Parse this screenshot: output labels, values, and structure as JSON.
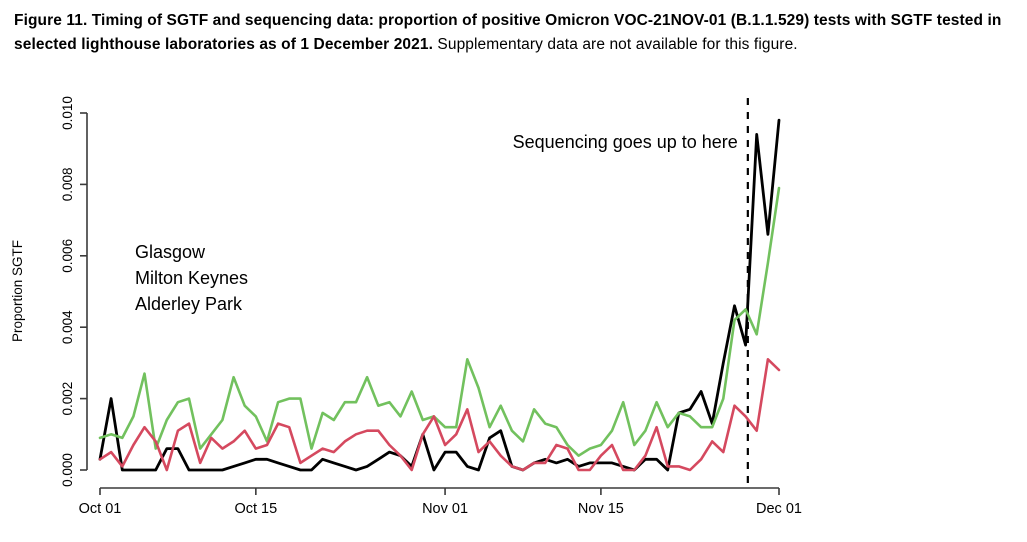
{
  "caption": {
    "bold_text": "Figure 11. Timing of SGTF and sequencing data: proportion of positive Omicron VOC-21NOV-01 (B.1.1.529) tests with SGTF tested in selected lighthouse laboratories as of 1 December 2021.",
    "regular_text": " Supplementary data are not available for this figure."
  },
  "chart_data": {
    "type": "line",
    "title": "",
    "xlabel": "",
    "ylabel": "Proportion SGTF",
    "ylim": [
      0,
      0.01
    ],
    "yticks": [
      0.0,
      0.002,
      0.004,
      0.006,
      0.008,
      0.01
    ],
    "ytick_labels": [
      "0.000",
      "0.002",
      "0.004",
      "0.006",
      "0.008",
      "0.010"
    ],
    "x_unit": "days since Oct 01 2021, daily points Oct 01 - Dec 01",
    "x_range_days": [
      0,
      61
    ],
    "xticks": [
      {
        "day": 0,
        "label": "Oct 01"
      },
      {
        "day": 14,
        "label": "Oct 15"
      },
      {
        "day": 31,
        "label": "Nov 01"
      },
      {
        "day": 45,
        "label": "Nov 15"
      },
      {
        "day": 61,
        "label": "Dec 01"
      }
    ],
    "grid": false,
    "legend_position": "upper-left-inside",
    "annotation": {
      "text": "Sequencing goes up to here",
      "line_at_day": 58.2,
      "line_style": "dashed",
      "line_color": "#000000"
    },
    "series": [
      {
        "name": "Glasgow",
        "color": "#000000",
        "values": [
          0.0003,
          0.002,
          0.0,
          0.0,
          0.0,
          0.0,
          0.0006,
          0.0006,
          0.0,
          0.0,
          0.0,
          0.0,
          0.0001,
          0.0002,
          0.0003,
          0.0003,
          0.0002,
          0.0001,
          0.0,
          0.0,
          0.0003,
          0.0002,
          0.0001,
          0.0,
          0.0001,
          0.0003,
          0.0005,
          0.0004,
          0.0001,
          0.001,
          0.0,
          0.0005,
          0.0005,
          0.0001,
          0.0,
          0.0009,
          0.0011,
          0.0001,
          0.0,
          0.0002,
          0.0003,
          0.0002,
          0.0003,
          0.0001,
          0.0002,
          0.0002,
          0.0002,
          0.0001,
          0.0,
          0.0003,
          0.0003,
          0.0,
          0.0016,
          0.0017,
          0.0022,
          0.0013,
          0.003,
          0.0046,
          0.0035,
          0.0094,
          0.0066,
          0.0098
        ]
      },
      {
        "name": "Milton Keynes",
        "color": "#72c15e",
        "values": [
          0.0009,
          0.001,
          0.0009,
          0.0015,
          0.0027,
          0.0006,
          0.0014,
          0.0019,
          0.002,
          0.0006,
          0.001,
          0.0014,
          0.0026,
          0.0018,
          0.0015,
          0.0008,
          0.0019,
          0.002,
          0.002,
          0.0006,
          0.0016,
          0.0014,
          0.0019,
          0.0019,
          0.0026,
          0.0018,
          0.0019,
          0.0015,
          0.0022,
          0.0014,
          0.0015,
          0.0012,
          0.0012,
          0.0031,
          0.0023,
          0.0012,
          0.0018,
          0.0011,
          0.0008,
          0.0017,
          0.0013,
          0.0012,
          0.0007,
          0.0004,
          0.0006,
          0.0007,
          0.0011,
          0.0019,
          0.0007,
          0.0011,
          0.0019,
          0.0012,
          0.0016,
          0.0015,
          0.0012,
          0.0012,
          0.002,
          0.0042,
          0.0045,
          0.0038,
          0.0058,
          0.0079
        ]
      },
      {
        "name": "Alderley Park",
        "color": "#d5495f",
        "values": [
          0.0003,
          0.0005,
          0.0001,
          0.0007,
          0.0012,
          0.0008,
          0.0,
          0.0011,
          0.0013,
          0.0002,
          0.0009,
          0.0006,
          0.0008,
          0.0011,
          0.0006,
          0.0007,
          0.0013,
          0.0012,
          0.0002,
          0.0004,
          0.0006,
          0.0005,
          0.0008,
          0.001,
          0.0011,
          0.0011,
          0.0007,
          0.0004,
          0.0,
          0.001,
          0.0015,
          0.0007,
          0.001,
          0.0017,
          0.0005,
          0.0008,
          0.0004,
          0.0001,
          0.0,
          0.0002,
          0.0002,
          0.0007,
          0.0006,
          0.0,
          0.0,
          0.0004,
          0.0007,
          0.0,
          0.0,
          0.0004,
          0.0012,
          0.0001,
          0.0001,
          0.0,
          0.0003,
          0.0008,
          0.0005,
          0.0018,
          0.0015,
          0.0011,
          0.0031,
          0.0028
        ]
      }
    ]
  }
}
